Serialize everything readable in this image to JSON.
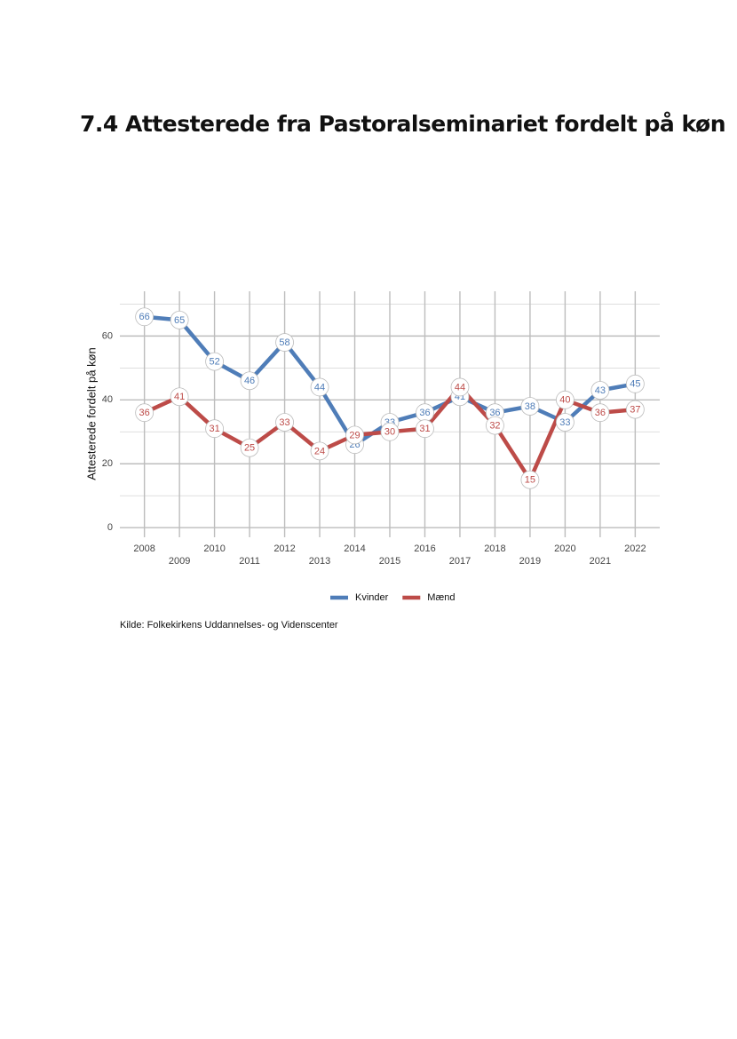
{
  "title": "7.4 Attesterede fra Pastoralseminariet fordelt på køn",
  "chart_data": {
    "type": "line",
    "y_label": "Attesterede fordelt på køn",
    "x": [
      2008,
      2009,
      2010,
      2011,
      2012,
      2013,
      2014,
      2015,
      2016,
      2017,
      2018,
      2019,
      2020,
      2021,
      2022
    ],
    "xlim": [
      2007.3,
      2022.7
    ],
    "xticks": [
      2008,
      2009,
      2010,
      2011,
      2012,
      2013,
      2014,
      2015,
      2016,
      2017,
      2018,
      2019,
      2020,
      2021,
      2022
    ],
    "ylim": [
      -3,
      74
    ],
    "yticks": [
      0,
      20,
      40,
      60
    ],
    "yminorticks": [
      10,
      30,
      50,
      70
    ],
    "grid": true,
    "legend": "bottom",
    "series": [
      {
        "name": "Kvinder",
        "color": "#4f7db8",
        "values": [
          66,
          65,
          52,
          46,
          58,
          44,
          26,
          33,
          36,
          41,
          36,
          38,
          33,
          43,
          45
        ]
      },
      {
        "name": "Mænd",
        "color": "#bd4b48",
        "values": [
          36,
          41,
          31,
          25,
          33,
          24,
          29,
          30,
          31,
          44,
          32,
          15,
          40,
          36,
          37
        ]
      }
    ],
    "source": "Kilde: Folkekirkens Uddannelses- og Videnscenter"
  }
}
